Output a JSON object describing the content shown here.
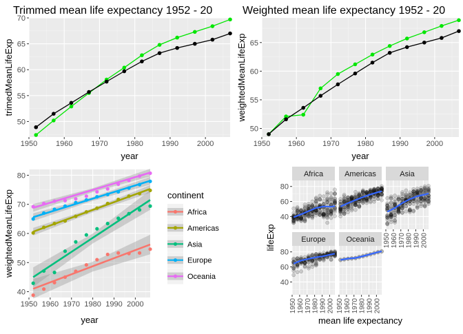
{
  "chart_data": [
    {
      "type": "line",
      "title": "Trimmed mean life expectancy 1952 - 20",
      "xlabel": "year",
      "ylabel": "trimedMeanLifeExp",
      "x": [
        1952,
        1957,
        1962,
        1967,
        1972,
        1977,
        1982,
        1987,
        1992,
        1997,
        2002,
        2007
      ],
      "xlim": [
        1950,
        2007
      ],
      "ylim": [
        47,
        70
      ],
      "xticks": [
        1950,
        1960,
        1970,
        1980,
        1990,
        2000
      ],
      "yticks": [
        50,
        55,
        60,
        65,
        70
      ],
      "grid": true,
      "series": [
        {
          "color": "#000000",
          "values": [
            48.9,
            51.5,
            53.6,
            55.7,
            57.7,
            59.7,
            61.6,
            63.2,
            64.2,
            65.0,
            65.8,
            67.0
          ]
        },
        {
          "color": "#00e600",
          "values": [
            47.4,
            50.2,
            52.9,
            55.5,
            58.1,
            60.4,
            62.8,
            64.8,
            66.2,
            67.3,
            68.4,
            69.7
          ]
        }
      ]
    },
    {
      "type": "line",
      "title": "Weighted mean life expectancy 1952 - 20",
      "xlabel": "year",
      "ylabel": "weightedMeanLifeExp",
      "x": [
        1952,
        1957,
        1962,
        1967,
        1972,
        1977,
        1982,
        1987,
        1992,
        1997,
        2002,
        2007
      ],
      "xlim": [
        1950,
        2007
      ],
      "ylim": [
        48.5,
        69.3
      ],
      "xticks": [
        1950,
        1960,
        1970,
        1980,
        1990,
        2000
      ],
      "yticks": [
        50,
        55,
        60,
        65
      ],
      "grid": true,
      "series": [
        {
          "color": "#000000",
          "values": [
            49.0,
            51.6,
            53.6,
            55.7,
            57.7,
            59.6,
            61.5,
            63.2,
            64.2,
            65.0,
            65.8,
            67.0
          ]
        },
        {
          "color": "#00e600",
          "values": [
            49.0,
            52.1,
            52.4,
            57.0,
            59.5,
            61.2,
            62.9,
            64.4,
            65.7,
            66.8,
            67.9,
            68.9
          ]
        }
      ]
    },
    {
      "type": "scatter",
      "xlabel": "year",
      "ylabel": "weightedMeanLifeExp",
      "x": [
        1952,
        1957,
        1962,
        1967,
        1972,
        1977,
        1982,
        1987,
        1992,
        1997,
        2002,
        2007
      ],
      "xlim": [
        1950,
        2007
      ],
      "ylim": [
        38,
        82
      ],
      "xticks": [
        1950,
        1960,
        1970,
        1980,
        1990,
        2000
      ],
      "yticks": [
        40,
        50,
        60,
        70,
        80
      ],
      "grid": true,
      "legend_title": "continent",
      "legend_position": "right",
      "series": [
        {
          "name": "Africa",
          "color": "#f8766d",
          "values": [
            38.8,
            40.9,
            43.1,
            45.0,
            47.0,
            49.2,
            51.0,
            52.8,
            53.3,
            53.1,
            53.3,
            54.6
          ],
          "fit": [
            41.0,
            56.2
          ]
        },
        {
          "name": "Americas",
          "color": "#a3a500",
          "values": [
            60.2,
            62.1,
            63.4,
            64.3,
            65.9,
            67.4,
            68.7,
            70.3,
            71.7,
            72.8,
            73.7,
            74.8
          ],
          "fit": [
            60.6,
            75.3
          ]
        },
        {
          "name": "Asia",
          "color": "#00bf7d",
          "values": [
            42.9,
            47.1,
            46.6,
            53.9,
            57.1,
            59.5,
            61.6,
            63.4,
            65.2,
            66.8,
            68.1,
            69.4
          ],
          "fit": [
            45.0,
            71.5
          ]
        },
        {
          "name": "Europe",
          "color": "#00b0f6",
          "values": [
            65.0,
            67.0,
            68.3,
            69.4,
            70.6,
            71.5,
            72.6,
            73.4,
            74.3,
            75.6,
            76.8,
            77.9
          ],
          "fit": [
            65.6,
            78.1
          ]
        },
        {
          "name": "Oceania",
          "color": "#e76bf3",
          "values": [
            69.2,
            70.3,
            71.1,
            71.3,
            71.9,
            72.8,
            74.3,
            75.3,
            76.9,
            78.2,
            79.7,
            80.7
          ],
          "fit": [
            68.8,
            80.9
          ]
        }
      ]
    },
    {
      "type": "scatter",
      "xlabel": "mean life expectancy",
      "ylabel": "lifeExp",
      "facets": [
        "Africa",
        "Americas",
        "Asia",
        "Europe",
        "Oceania"
      ],
      "xlim": [
        1950,
        2007
      ],
      "ylim": [
        23,
        88
      ],
      "xticks": [
        1950,
        1960,
        1970,
        1980,
        1990,
        2000
      ],
      "yticks": [
        40,
        60,
        80
      ],
      "grid": true,
      "smooth_color": "#3366ff",
      "smooth": {
        "x": [
          1952,
          1962,
          1972,
          1982,
          1992,
          2002,
          2007
        ],
        "Africa": [
          39.1,
          43.0,
          47.3,
          51.4,
          53.5,
          53.0,
          53.9
        ],
        "Americas": [
          53.3,
          57.8,
          61.9,
          65.9,
          69.4,
          72.3,
          73.6
        ],
        "Asia": [
          46.3,
          51.4,
          58.0,
          63.1,
          67.0,
          69.2,
          70.7
        ],
        "Europe": [
          64.4,
          68.5,
          70.8,
          72.8,
          74.4,
          76.7,
          77.6
        ],
        "Oceania": [
          69.3,
          71.1,
          71.9,
          74.3,
          76.9,
          79.7,
          80.7
        ]
      },
      "spread": {
        "Africa": {
          "lo": [
            30,
            32,
            35,
            38,
            24,
            38,
            39
          ],
          "hi": [
            52,
            56,
            60,
            66,
            72,
            75,
            77
          ]
        },
        "Americas": {
          "lo": [
            38,
            43,
            48,
            56,
            59,
            60,
            60
          ],
          "hi": [
            68,
            71,
            74,
            76,
            77,
            79,
            81
          ]
        },
        "Asia": {
          "lo": [
            29,
            32,
            40,
            44,
            48,
            50,
            53
          ],
          "hi": [
            65,
            69,
            73,
            77,
            80,
            82,
            83
          ]
        },
        "Europe": {
          "lo": [
            44,
            52,
            58,
            61,
            68,
            69,
            71
          ],
          "hi": [
            72,
            73,
            75,
            77,
            79,
            81,
            82
          ]
        },
        "Oceania": {
          "lo": [
            69,
            70,
            71,
            73,
            76,
            79,
            80
          ],
          "hi": [
            70,
            71,
            72,
            75,
            78,
            80,
            81
          ]
        }
      }
    }
  ]
}
